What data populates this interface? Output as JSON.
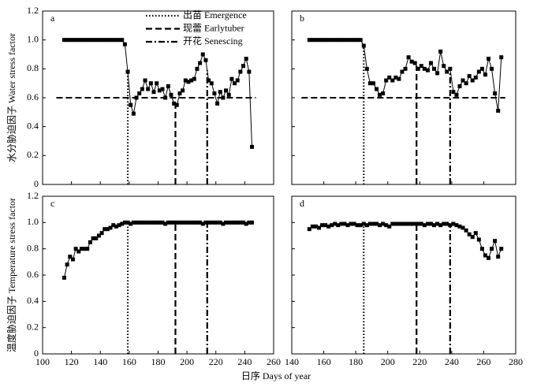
{
  "xlabel": "日序 Days of year",
  "chart_data": [
    {
      "type": "line",
      "label": "a",
      "ylabel": "水分胁迫因子 Water stress factor",
      "color": "#000000",
      "x": [
        115,
        117,
        119,
        121,
        123,
        125,
        127,
        129,
        131,
        133,
        135,
        137,
        139,
        141,
        143,
        145,
        147,
        149,
        151,
        153,
        155,
        157,
        159,
        161,
        163,
        165,
        167,
        169,
        171,
        173,
        175,
        177,
        179,
        181,
        183,
        185,
        187,
        189,
        191,
        193,
        195,
        197,
        199,
        201,
        203,
        205,
        207,
        209,
        211,
        213,
        215,
        217,
        219,
        221,
        223,
        225,
        227,
        229,
        231,
        233,
        235,
        237,
        239,
        241,
        243,
        245
      ],
      "values": [
        1,
        1,
        1,
        1,
        1,
        1,
        1,
        1,
        1,
        1,
        1,
        1,
        1,
        1,
        1,
        1,
        1,
        1,
        1,
        1,
        1,
        0.97,
        0.78,
        0.55,
        0.49,
        0.6,
        0.63,
        0.66,
        0.72,
        0.66,
        0.7,
        0.64,
        0.7,
        0.65,
        0.66,
        0.6,
        0.68,
        0.62,
        0.56,
        0.55,
        0.63,
        0.65,
        0.72,
        0.71,
        0.72,
        0.73,
        0.8,
        0.84,
        0.9,
        0.86,
        0.72,
        0.7,
        0.63,
        0.56,
        0.64,
        0.6,
        0.65,
        0.62,
        0.73,
        0.7,
        0.72,
        0.78,
        0.82,
        0.87,
        0.78,
        0.26
      ],
      "threshold": 0.6,
      "events": [
        {
          "name": "出苗 Emergence",
          "x": 159,
          "style": "dotted"
        },
        {
          "name": "现蕾 Earlytuber",
          "x": 192,
          "style": "dashed"
        },
        {
          "name": "开花 Senescing",
          "x": 214,
          "style": "dashdot"
        }
      ],
      "xlim": [
        100,
        260
      ],
      "xticks": [
        100,
        120,
        140,
        160,
        180,
        200,
        220,
        240,
        260
      ],
      "xtick_labels": false,
      "ylim": [
        0,
        1.2
      ],
      "yticks": [
        0,
        0.2,
        0.4,
        0.6,
        0.8,
        {
          "value": 1,
          "label": "1.0"
        },
        1.2
      ],
      "ytick_labels": true
    },
    {
      "type": "line",
      "label": "b",
      "color": "#000000",
      "x": [
        151,
        153,
        155,
        157,
        159,
        161,
        163,
        165,
        167,
        169,
        171,
        173,
        175,
        177,
        179,
        181,
        183,
        185,
        187,
        189,
        191,
        193,
        195,
        197,
        199,
        201,
        203,
        205,
        207,
        209,
        211,
        213,
        215,
        217,
        219,
        221,
        223,
        225,
        227,
        229,
        231,
        233,
        235,
        237,
        239,
        241,
        243,
        245,
        247,
        249,
        251,
        253,
        255,
        257,
        259,
        261,
        263,
        265,
        267,
        269,
        271
      ],
      "values": [
        1,
        1,
        1,
        1,
        1,
        1,
        1,
        1,
        1,
        1,
        1,
        1,
        1,
        1,
        1,
        1,
        1,
        0.96,
        0.8,
        0.7,
        0.7,
        0.66,
        0.62,
        0.63,
        0.72,
        0.74,
        0.72,
        0.74,
        0.73,
        0.78,
        0.8,
        0.88,
        0.85,
        0.84,
        0.8,
        0.82,
        0.8,
        0.79,
        0.84,
        0.8,
        0.77,
        0.92,
        0.82,
        0.78,
        0.8,
        0.64,
        0.62,
        0.68,
        0.72,
        0.7,
        0.75,
        0.72,
        0.74,
        0.78,
        0.8,
        0.76,
        0.87,
        0.8,
        0.63,
        0.51,
        0.88
      ],
      "threshold": 0.6,
      "events": [
        {
          "x": 185,
          "style": "dotted"
        },
        {
          "x": 218,
          "style": "dashed"
        },
        {
          "x": 239,
          "style": "dashdot"
        }
      ],
      "xlim": [
        140,
        280
      ],
      "xticks": [
        140,
        160,
        180,
        200,
        220,
        240,
        260,
        280
      ],
      "xtick_labels": false,
      "ylim": [
        0,
        1.2
      ],
      "yticks": [
        0,
        0.2,
        0.4,
        0.6,
        0.8,
        {
          "value": 1,
          "label": "1.0"
        },
        1.2
      ],
      "ytick_labels": false
    },
    {
      "type": "line",
      "label": "c",
      "ylabel": "温度胁迫因子 Temperature stress factor",
      "color": "#000000",
      "x": [
        115,
        117,
        119,
        121,
        123,
        125,
        127,
        129,
        131,
        133,
        135,
        137,
        139,
        141,
        143,
        145,
        147,
        149,
        151,
        153,
        155,
        157,
        159,
        161,
        163,
        165,
        167,
        169,
        171,
        173,
        175,
        177,
        179,
        181,
        183,
        185,
        187,
        189,
        191,
        193,
        195,
        197,
        199,
        201,
        203,
        205,
        207,
        209,
        211,
        213,
        215,
        217,
        219,
        221,
        223,
        225,
        227,
        229,
        231,
        233,
        235,
        237,
        239,
        241,
        243,
        245
      ],
      "values": [
        0.58,
        0.68,
        0.74,
        0.72,
        0.8,
        0.78,
        0.8,
        0.8,
        0.8,
        0.85,
        0.88,
        0.88,
        0.9,
        0.92,
        0.95,
        0.95,
        0.96,
        0.98,
        0.97,
        0.98,
        0.99,
        1,
        1,
        0.99,
        1,
        1,
        1,
        1,
        1,
        1,
        1,
        1,
        1,
        1,
        1,
        0.99,
        1,
        1,
        1,
        1,
        1,
        1,
        1,
        1,
        1,
        1,
        1,
        1,
        0.99,
        1,
        1,
        1,
        1,
        1,
        1,
        0.99,
        1,
        1,
        1,
        1,
        1,
        1,
        1,
        0.99,
        1,
        1
      ],
      "events": [
        {
          "x": 159,
          "style": "dotted"
        },
        {
          "x": 192,
          "style": "dashed"
        },
        {
          "x": 214,
          "style": "dashdot"
        }
      ],
      "xlim": [
        100,
        260
      ],
      "xticks": [
        100,
        120,
        140,
        160,
        180,
        200,
        220,
        240,
        260
      ],
      "xtick_labels": true,
      "ylim": [
        0,
        1.2
      ],
      "yticks": [
        0,
        0.2,
        0.4,
        0.6,
        0.8,
        {
          "value": 1,
          "label": "1.0"
        },
        1.2
      ],
      "ytick_labels": true
    },
    {
      "type": "line",
      "label": "d",
      "color": "#000000",
      "x": [
        151,
        153,
        155,
        157,
        159,
        161,
        163,
        165,
        167,
        169,
        171,
        173,
        175,
        177,
        179,
        181,
        183,
        185,
        187,
        189,
        191,
        193,
        195,
        197,
        199,
        201,
        203,
        205,
        207,
        209,
        211,
        213,
        215,
        217,
        219,
        221,
        223,
        225,
        227,
        229,
        231,
        233,
        235,
        237,
        239,
        241,
        243,
        245,
        247,
        249,
        251,
        253,
        255,
        257,
        259,
        261,
        263,
        265,
        267,
        269,
        271
      ],
      "values": [
        0.95,
        0.97,
        0.97,
        0.96,
        0.98,
        0.98,
        0.97,
        0.98,
        0.99,
        0.98,
        0.99,
        0.99,
        0.98,
        0.99,
        0.99,
        0.98,
        0.98,
        0.99,
        0.98,
        0.99,
        0.99,
        0.99,
        0.98,
        0.99,
        0.98,
        0.97,
        0.99,
        0.99,
        0.99,
        0.99,
        0.99,
        0.99,
        0.99,
        0.99,
        0.99,
        0.99,
        0.98,
        0.99,
        0.99,
        0.98,
        0.99,
        0.98,
        0.99,
        0.99,
        0.98,
        0.99,
        0.98,
        0.97,
        0.96,
        0.94,
        0.91,
        0.89,
        0.92,
        0.87,
        0.8,
        0.75,
        0.73,
        0.8,
        0.86,
        0.74,
        0.8
      ],
      "events": [
        {
          "x": 185,
          "style": "dotted"
        },
        {
          "x": 218,
          "style": "dashed"
        },
        {
          "x": 239,
          "style": "dashdot"
        }
      ],
      "xlim": [
        140,
        280
      ],
      "xticks": [
        140,
        160,
        180,
        200,
        220,
        240,
        260,
        280
      ],
      "xtick_labels": true,
      "ylim": [
        0,
        1.2
      ],
      "yticks": [
        0,
        0.2,
        0.4,
        0.6,
        0.8,
        {
          "value": 1,
          "label": "1.0"
        },
        1.2
      ],
      "ytick_labels": false
    }
  ]
}
